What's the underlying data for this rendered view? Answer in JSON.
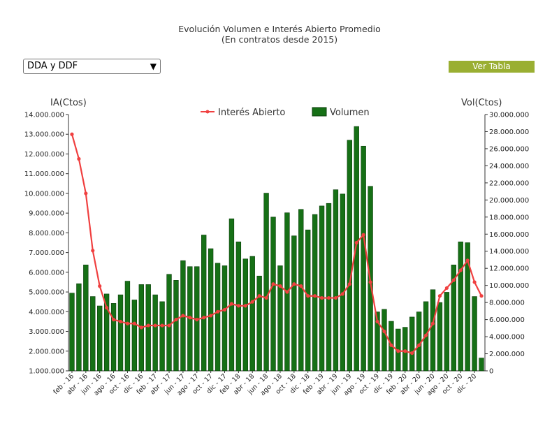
{
  "header": {
    "title_line1": "Evolución Volumen e Interés Abierto Promedio",
    "title_line2": "(En contratos desde 2015)"
  },
  "controls": {
    "product_select_value": "DDA y DDF",
    "view_table_label": "Ver Tabla"
  },
  "colors": {
    "bar_fill": "#167016",
    "bar_stroke": "#0a3d0a",
    "line": "#f04040",
    "button": "#9aaf32"
  },
  "chart_data": {
    "type": "bar+line",
    "title": "Evolución Volumen e Interés Abierto Promedio (En contratos desde 2015)",
    "left_axis_label": "IA(Ctos)",
    "right_axis_label": "Vol(Ctos)",
    "left_ylim": [
      1000000,
      14000000
    ],
    "right_ylim": [
      0,
      30000000
    ],
    "left_ticks": [
      "1.000.000",
      "2.000.000",
      "3.000.000",
      "4.000.000",
      "5.000.000",
      "6.000.000",
      "7.000.000",
      "8.000.000",
      "9.000.000",
      "10.000.000",
      "11.000.000",
      "12.000.000",
      "13.000.000",
      "14.000.000"
    ],
    "right_ticks": [
      "0",
      "2.000.000",
      "4.000.000",
      "6.000.000",
      "8.000.000",
      "10.000.000",
      "12.000.000",
      "14.000.000",
      "16.000.000",
      "18.000.000",
      "20.000.000",
      "22.000.000",
      "24.000.000",
      "26.000.000",
      "28.000.000",
      "30.000.000"
    ],
    "x_tick_labels": [
      "feb - 16",
      "abr - 16",
      "jun - 16",
      "ago - 16",
      "oct - 16",
      "dic - 16",
      "feb - 17",
      "abr - 17",
      "jun - 17",
      "ago - 17",
      "oct - 17",
      "dic - 17",
      "feb - 18",
      "abr - 18",
      "jun - 18",
      "ago - 18",
      "oct - 18",
      "dic - 18",
      "feb - 19",
      "abr - 19",
      "jun - 19",
      "ago - 19",
      "oct - 19",
      "dic - 19",
      "feb - 20",
      "abr - 20",
      "jun - 20",
      "ago - 20",
      "oct - 20",
      "dic - 20"
    ],
    "legend": {
      "placement": "top-center",
      "line_label": "Interés Abierto",
      "bar_label": "Volumen"
    },
    "series": [
      {
        "name": "Volumen",
        "type": "bar",
        "axis": "right",
        "values": [
          9100000,
          10200000,
          12400000,
          8700000,
          7600000,
          9000000,
          7900000,
          8900000,
          10500000,
          8300000,
          10100000,
          10100000,
          8900000,
          8100000,
          11300000,
          10600000,
          12900000,
          12200000,
          12200000,
          15900000,
          14300000,
          12600000,
          12300000,
          17800000,
          15100000,
          13100000,
          13400000,
          11100000,
          20800000,
          18000000,
          12300000,
          18500000,
          15800000,
          18900000,
          16500000,
          18300000,
          19300000,
          19600000,
          21200000,
          20700000,
          27000000,
          28600000,
          26300000,
          21600000,
          6900000,
          7200000,
          5800000,
          4900000,
          5100000,
          6300000,
          6900000,
          8100000,
          9500000,
          8000000,
          9200000,
          12400000,
          15100000,
          15000000,
          8700000,
          1500000
        ]
      },
      {
        "name": "Interés Abierto",
        "type": "line",
        "axis": "left",
        "values": [
          13000000,
          11750000,
          10000000,
          7100000,
          5300000,
          4200000,
          3600000,
          3500000,
          3400000,
          3400000,
          3200000,
          3300000,
          3300000,
          3300000,
          3300000,
          3600000,
          3800000,
          3700000,
          3600000,
          3700000,
          3800000,
          4000000,
          4100000,
          4400000,
          4300000,
          4300000,
          4500000,
          4800000,
          4700000,
          5400000,
          5300000,
          5000000,
          5400000,
          5300000,
          4800000,
          4800000,
          4700000,
          4700000,
          4700000,
          4900000,
          5400000,
          7500000,
          7900000,
          5500000,
          3500000,
          3000000,
          2300000,
          2000000,
          2000000,
          1900000,
          2300000,
          2800000,
          3400000,
          4800000,
          5200000,
          5600000,
          6100000,
          6600000,
          5500000,
          4800000
        ]
      }
    ]
  }
}
